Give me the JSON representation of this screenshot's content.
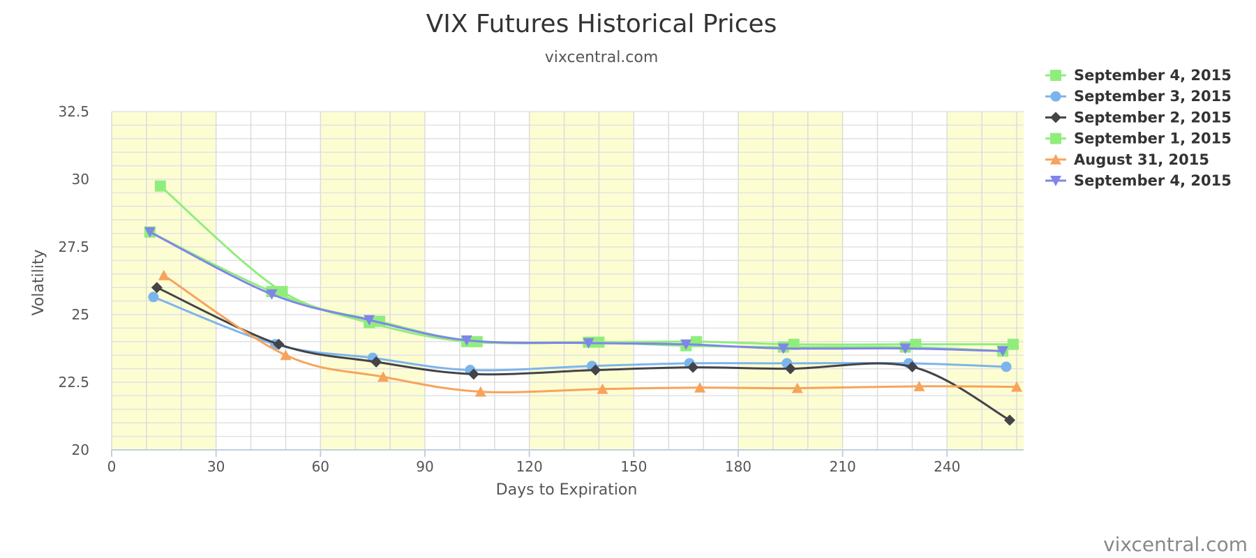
{
  "chart_data": {
    "type": "line",
    "title": "VIX Futures Historical Prices",
    "subtitle": "vixcentral.com",
    "xlabel": "Days to Expiration",
    "ylabel": "Volatility",
    "xlim": [
      0,
      262
    ],
    "ylim": [
      20,
      32.5
    ],
    "x_ticks": [
      "0",
      "30",
      "60",
      "90",
      "120",
      "150",
      "180",
      "210",
      "240"
    ],
    "y_ticks": [
      "20",
      "22.5",
      "25",
      "27.5",
      "30",
      "32.5"
    ],
    "x_tick_values": [
      0,
      30,
      60,
      90,
      120,
      150,
      180,
      210,
      240
    ],
    "y_tick_values": [
      20,
      22.5,
      25,
      27.5,
      30,
      32.5
    ],
    "shaded_bands": [
      [
        0,
        30
      ],
      [
        60,
        90
      ],
      [
        120,
        150
      ],
      [
        180,
        210
      ],
      [
        240,
        262
      ]
    ],
    "band_color": "#fdfdd2",
    "grid": true,
    "legend_placement": "top-right",
    "credit": "vixcentral.com",
    "series": [
      {
        "name": "September 4, 2015",
        "color": "#90ed7d",
        "marker": "square",
        "x": [
          14,
          49,
          77,
          105,
          140,
          168,
          196,
          231,
          259
        ],
        "y": [
          29.75,
          25.85,
          24.75,
          24.0,
          23.98,
          24.0,
          23.9,
          23.9,
          23.9
        ]
      },
      {
        "name": "September 3, 2015",
        "color": "#7cb5ec",
        "marker": "circle",
        "x": [
          12,
          47,
          75,
          103,
          138,
          166,
          194,
          229,
          257
        ],
        "y": [
          25.65,
          23.9,
          23.4,
          22.95,
          23.1,
          23.2,
          23.2,
          23.2,
          23.07
        ]
      },
      {
        "name": "September 2, 2015",
        "color": "#434348",
        "marker": "diamond",
        "x": [
          13,
          48,
          76,
          104,
          139,
          167,
          195,
          230,
          258
        ],
        "y": [
          26.0,
          23.9,
          23.25,
          22.8,
          22.95,
          23.05,
          23.0,
          23.07,
          21.1
        ]
      },
      {
        "name": "September 1, 2015",
        "color": "#90ed7d",
        "marker": "square",
        "x": [
          11,
          46,
          74,
          102,
          137,
          165,
          193,
          228,
          256
        ],
        "y": [
          28.05,
          25.85,
          24.7,
          24.0,
          23.98,
          23.85,
          23.8,
          23.8,
          23.65
        ]
      },
      {
        "name": "August 31, 2015",
        "color": "#f7a35c",
        "marker": "triangle",
        "x": [
          15,
          50,
          78,
          106,
          141,
          169,
          197,
          232,
          260
        ],
        "y": [
          26.45,
          23.5,
          22.7,
          22.15,
          22.25,
          22.3,
          22.28,
          22.35,
          22.33
        ]
      },
      {
        "name": "September 4, 2015",
        "color": "#8085e9",
        "marker": "triangle-down",
        "x": [
          11,
          46,
          74,
          102,
          137,
          165,
          193,
          228,
          256
        ],
        "y": [
          28.05,
          25.75,
          24.8,
          24.05,
          23.95,
          23.9,
          23.75,
          23.75,
          23.65
        ]
      }
    ]
  }
}
